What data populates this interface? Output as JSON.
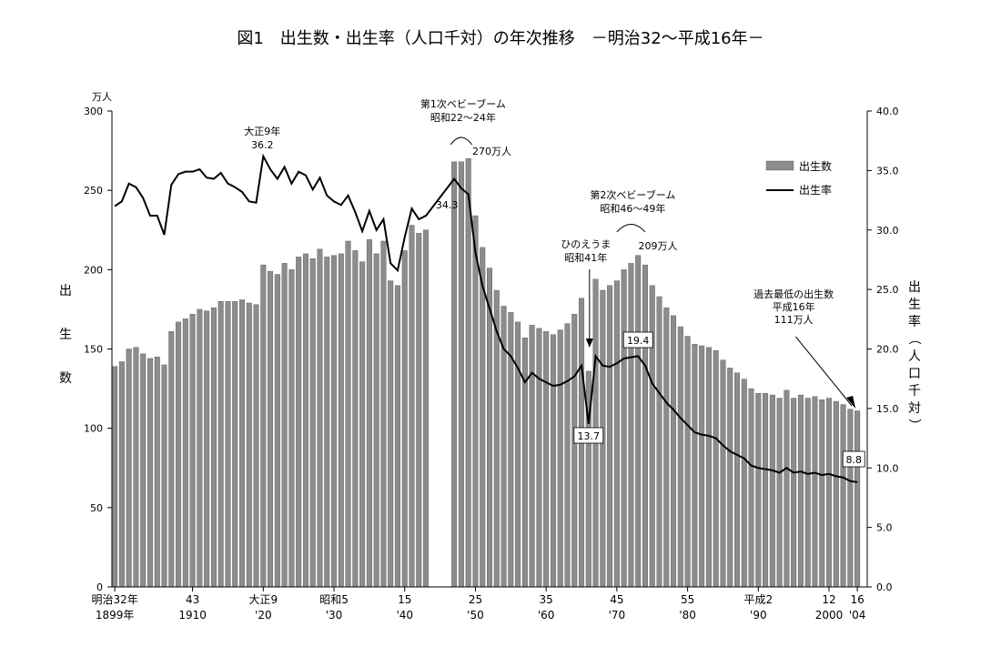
{
  "title": "図1　出生数・出生率（人口千対）の年次推移　－明治32～平成16年－",
  "chart_data": {
    "type": "bar+line",
    "left_axis": {
      "unit": "万人",
      "label": "出生数",
      "min": 0,
      "max": 300,
      "ticks": [
        "0",
        "50",
        "100",
        "150",
        "200",
        "250",
        "300"
      ]
    },
    "right_axis": {
      "label": "出生率（人口千対）",
      "min": 0,
      "max": 40,
      "ticks": [
        "0.0",
        "5.0",
        "10.0",
        "15.0",
        "20.0",
        "25.0",
        "30.0",
        "35.0",
        "40.0"
      ]
    },
    "x_ticks": [
      {
        "year": 1899,
        "top": "明治32年",
        "bottom": "1899年"
      },
      {
        "year": 1910,
        "top": "43",
        "bottom": "1910"
      },
      {
        "year": 1920,
        "top": "大正9",
        "bottom": "'20"
      },
      {
        "year": 1930,
        "top": "昭和5",
        "bottom": "'30"
      },
      {
        "year": 1940,
        "top": "15",
        "bottom": "'40"
      },
      {
        "year": 1950,
        "top": "25",
        "bottom": "'50"
      },
      {
        "year": 1960,
        "top": "35",
        "bottom": "'60"
      },
      {
        "year": 1970,
        "top": "45",
        "bottom": "'70"
      },
      {
        "year": 1980,
        "top": "55",
        "bottom": "'80"
      },
      {
        "year": 1990,
        "top": "平成2",
        "bottom": "'90"
      },
      {
        "year": 2000,
        "top": "12",
        "bottom": "2000"
      },
      {
        "year": 2004,
        "top": "16",
        "bottom": "'04"
      }
    ],
    "legend": [
      {
        "name": "出生数",
        "kind": "bar"
      },
      {
        "name": "出生率",
        "kind": "line"
      }
    ],
    "series": [
      {
        "name": "出生数",
        "unit": "万人",
        "x": [
          1899,
          1900,
          1901,
          1902,
          1903,
          1904,
          1905,
          1906,
          1907,
          1908,
          1909,
          1910,
          1911,
          1912,
          1913,
          1914,
          1915,
          1916,
          1917,
          1918,
          1919,
          1920,
          1921,
          1922,
          1923,
          1924,
          1925,
          1926,
          1927,
          1928,
          1929,
          1930,
          1931,
          1932,
          1933,
          1934,
          1935,
          1936,
          1937,
          1938,
          1939,
          1940,
          1941,
          1942,
          1943,
          1947,
          1948,
          1949,
          1950,
          1951,
          1952,
          1953,
          1954,
          1955,
          1956,
          1957,
          1958,
          1959,
          1960,
          1961,
          1962,
          1963,
          1964,
          1965,
          1966,
          1967,
          1968,
          1969,
          1970,
          1971,
          1972,
          1973,
          1974,
          1975,
          1976,
          1977,
          1978,
          1979,
          1980,
          1981,
          1982,
          1983,
          1984,
          1985,
          1986,
          1987,
          1988,
          1989,
          1990,
          1991,
          1992,
          1993,
          1994,
          1995,
          1996,
          1997,
          1998,
          1999,
          2000,
          2001,
          2002,
          2003,
          2004
        ],
        "values": [
          139,
          142,
          150,
          151,
          147,
          144,
          145,
          140,
          161,
          167,
          169,
          172,
          175,
          174,
          176,
          180,
          180,
          180,
          181,
          179,
          178,
          203,
          199,
          197,
          204,
          200,
          208,
          210,
          207,
          213,
          208,
          209,
          210,
          218,
          212,
          205,
          219,
          210,
          218,
          193,
          190,
          212,
          228,
          223,
          225,
          268,
          268,
          270,
          234,
          214,
          201,
          187,
          177,
          173,
          167,
          157,
          165,
          163,
          161,
          159,
          162,
          166,
          172,
          182,
          136,
          194,
          187,
          190,
          193,
          200,
          204,
          209,
          203,
          190,
          183,
          176,
          171,
          164,
          158,
          153,
          152,
          151,
          149,
          143,
          138,
          135,
          131,
          125,
          122,
          122,
          121,
          119,
          124,
          119,
          121,
          119,
          120,
          118,
          119,
          117,
          115,
          112,
          111
        ]
      },
      {
        "name": "出生率",
        "unit": "人口千対",
        "x": [
          1899,
          1900,
          1901,
          1902,
          1903,
          1904,
          1905,
          1906,
          1907,
          1908,
          1909,
          1910,
          1911,
          1912,
          1913,
          1914,
          1915,
          1916,
          1917,
          1918,
          1919,
          1920,
          1921,
          1922,
          1923,
          1924,
          1925,
          1926,
          1927,
          1928,
          1929,
          1930,
          1931,
          1932,
          1933,
          1934,
          1935,
          1936,
          1937,
          1938,
          1939,
          1940,
          1941,
          1942,
          1943,
          1947,
          1948,
          1949,
          1950,
          1951,
          1952,
          1953,
          1954,
          1955,
          1956,
          1957,
          1958,
          1959,
          1960,
          1961,
          1962,
          1963,
          1964,
          1965,
          1966,
          1967,
          1968,
          1969,
          1970,
          1971,
          1972,
          1973,
          1974,
          1975,
          1976,
          1977,
          1978,
          1979,
          1980,
          1981,
          1982,
          1983,
          1984,
          1985,
          1986,
          1987,
          1988,
          1989,
          1990,
          1991,
          1992,
          1993,
          1994,
          1995,
          1996,
          1997,
          1998,
          1999,
          2000,
          2001,
          2002,
          2003,
          2004
        ],
        "values": [
          32.0,
          32.4,
          33.9,
          33.6,
          32.7,
          31.2,
          31.2,
          29.6,
          33.8,
          34.7,
          34.9,
          34.9,
          35.1,
          34.4,
          34.3,
          34.8,
          33.9,
          33.6,
          33.2,
          32.4,
          32.3,
          36.2,
          35.1,
          34.3,
          35.3,
          33.9,
          34.9,
          34.6,
          33.4,
          34.4,
          32.9,
          32.4,
          32.1,
          32.9,
          31.5,
          29.9,
          31.6,
          30.0,
          30.9,
          27.2,
          26.6,
          29.4,
          31.8,
          30.9,
          31.2,
          34.3,
          33.5,
          33.0,
          28.1,
          25.3,
          23.4,
          21.5,
          20.0,
          19.4,
          18.4,
          17.2,
          18.0,
          17.5,
          17.2,
          16.9,
          17.0,
          17.3,
          17.7,
          18.6,
          13.7,
          19.4,
          18.6,
          18.5,
          18.8,
          19.2,
          19.3,
          19.4,
          18.6,
          17.1,
          16.3,
          15.5,
          14.9,
          14.2,
          13.6,
          13.0,
          12.8,
          12.7,
          12.5,
          11.9,
          11.4,
          11.1,
          10.8,
          10.2,
          10.0,
          9.9,
          9.8,
          9.6,
          10.0,
          9.6,
          9.7,
          9.5,
          9.6,
          9.4,
          9.5,
          9.3,
          9.2,
          8.9,
          8.8
        ]
      }
    ],
    "annotations": [
      {
        "lines": [
          "大正9年",
          "36.2"
        ]
      },
      {
        "lines": [
          "第1次ベビーブーム",
          "昭和22～24年"
        ]
      },
      {
        "lines": [
          "270万人"
        ]
      },
      {
        "lines": [
          "34.3"
        ]
      },
      {
        "lines": [
          "ひのえうま",
          "昭和41年"
        ]
      },
      {
        "lines": [
          "13.7"
        ]
      },
      {
        "lines": [
          "第2次ベビーブーム",
          "昭和46～49年"
        ]
      },
      {
        "lines": [
          "209万人"
        ]
      },
      {
        "lines": [
          "19.4"
        ]
      },
      {
        "lines": [
          "過去最低の出生数",
          "平成16年",
          "111万人"
        ]
      },
      {
        "lines": [
          "8.8"
        ]
      }
    ]
  }
}
